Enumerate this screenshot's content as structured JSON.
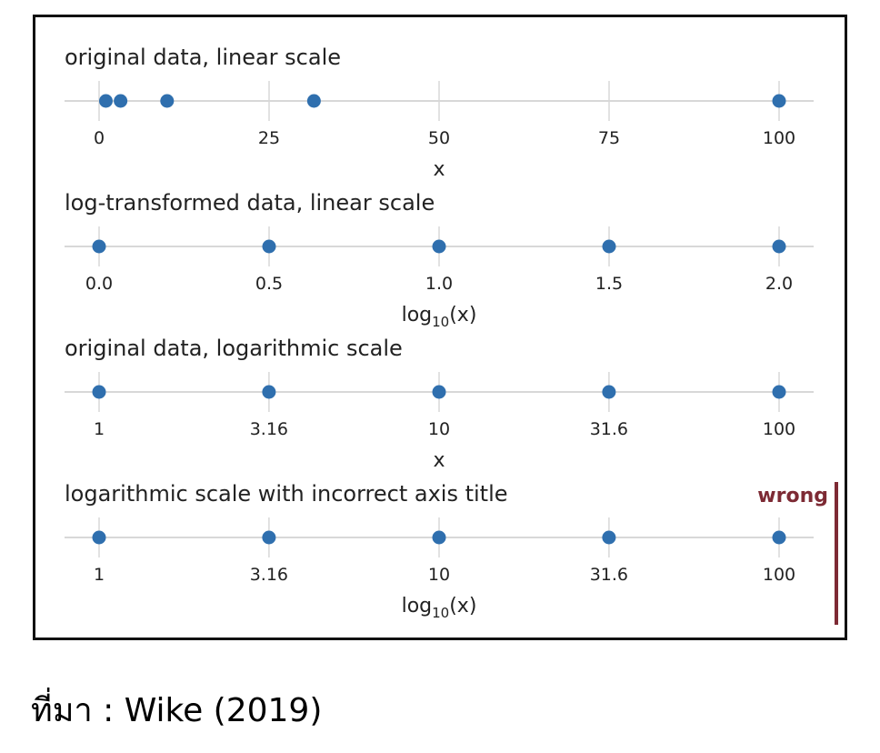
{
  "colors": {
    "point": "#2f6fae",
    "grid": "#d8d8d8",
    "wrong": "#7d2a34",
    "frame": "#111111"
  },
  "chart_data": [
    {
      "type": "scatter",
      "title": "original data, linear scale",
      "xlabel": "x",
      "xlabel_sub": "",
      "xlabel_suffix": "",
      "scale": "linear",
      "xlim": [
        0,
        100
      ],
      "ticks": [
        0,
        25,
        50,
        75,
        100
      ],
      "tick_labels": [
        "0",
        "25",
        "50",
        "75",
        "100"
      ],
      "points": [
        1,
        3.16,
        10,
        31.6,
        100
      ]
    },
    {
      "type": "scatter",
      "title": "log-transformed data, linear scale",
      "xlabel": "log",
      "xlabel_sub": "10",
      "xlabel_suffix": "(x)",
      "scale": "linear",
      "xlim": [
        0,
        2
      ],
      "ticks": [
        0,
        0.5,
        1,
        1.5,
        2
      ],
      "tick_labels": [
        "0.0",
        "0.5",
        "1.0",
        "1.5",
        "2.0"
      ],
      "points": [
        0,
        0.5,
        1,
        1.5,
        2
      ]
    },
    {
      "type": "scatter",
      "title": "original data, logarithmic scale",
      "xlabel": "x",
      "xlabel_sub": "",
      "xlabel_suffix": "",
      "scale": "log",
      "xlim": [
        1,
        100
      ],
      "ticks": [
        1,
        3.16,
        10,
        31.6,
        100
      ],
      "tick_labels": [
        "1",
        "3.16",
        "10",
        "31.6",
        "100"
      ],
      "points": [
        1,
        3.16,
        10,
        31.6,
        100
      ]
    },
    {
      "type": "scatter",
      "title": "logarithmic scale with incorrect axis title",
      "xlabel": "log",
      "xlabel_sub": "10",
      "xlabel_suffix": "(x)",
      "scale": "log",
      "xlim": [
        1,
        100
      ],
      "ticks": [
        1,
        3.16,
        10,
        31.6,
        100
      ],
      "tick_labels": [
        "1",
        "3.16",
        "10",
        "31.6",
        "100"
      ],
      "points": [
        1,
        3.16,
        10,
        31.6,
        100
      ],
      "annotation": "wrong"
    }
  ],
  "source": "ที่มา : Wike (2019)"
}
